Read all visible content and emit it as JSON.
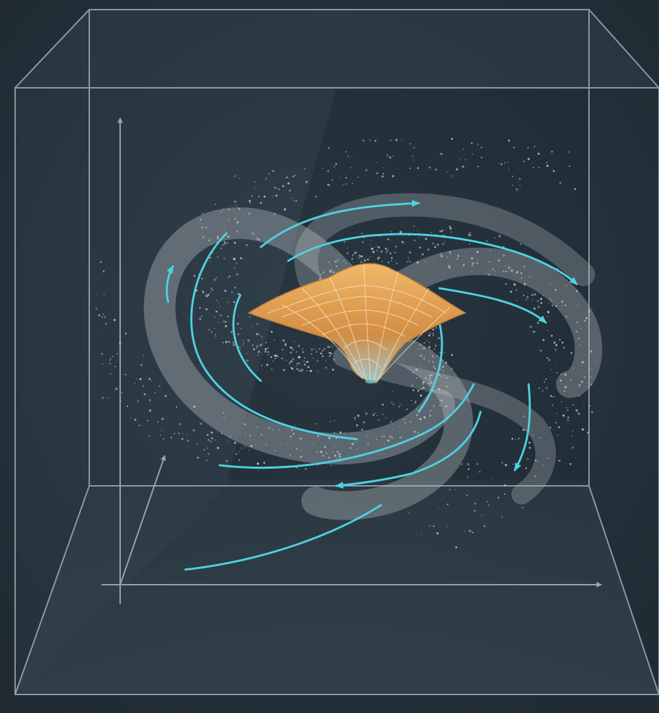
{
  "colors": {
    "background": "#243039",
    "background_inner": "#2b3a45",
    "cube_edge": "#aebdc6",
    "axis": "#9aa4aa",
    "flow_arrow": "#4fd0e0",
    "particles": "#c9cdd0",
    "well_surface": "#e0a35a",
    "well_mesh": "#f6e2bf"
  },
  "diagram": {
    "elements": [
      "glass-cube",
      "coordinate-axes",
      "spiral-galaxy-particles",
      "flow-arrows",
      "potential-well-surface"
    ]
  }
}
